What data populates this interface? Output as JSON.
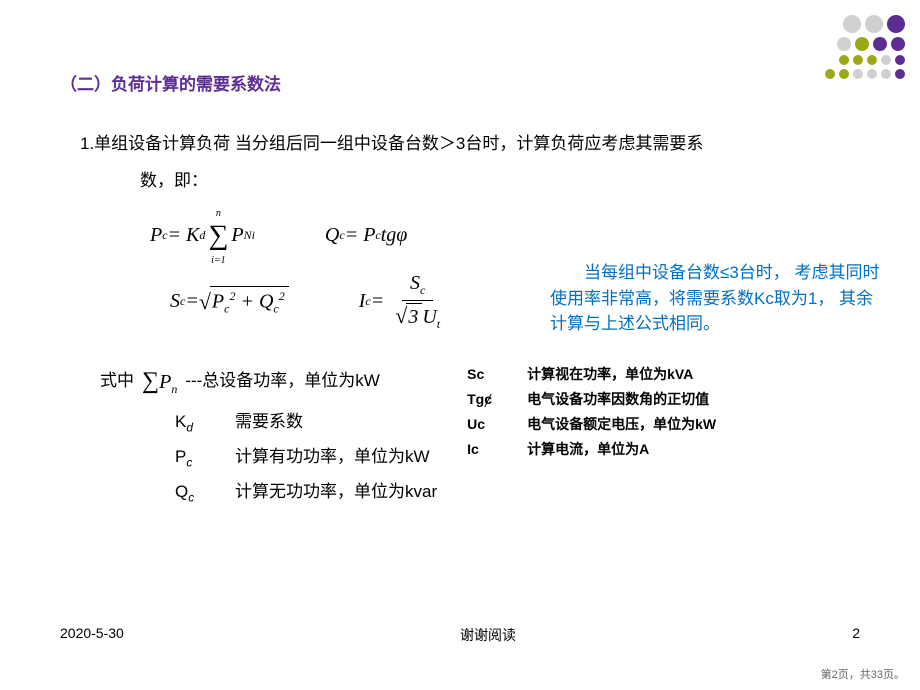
{
  "colors": {
    "title": "#5c2e91",
    "accent": "#0070c0",
    "text": "#000000",
    "dot_purple": "#5c2e91",
    "dot_olive": "#9ca817",
    "dot_gray": "#d0d0d0"
  },
  "section_title": "（二）负荷计算的需要系数法",
  "body_line": "1.单组设备计算负荷  当分组后同一组中设备台数＞3台时，计算负荷应考虑其需要系",
  "body_line2": "数，即：",
  "formulas": {
    "pc": {
      "lhs": "P",
      "lhs_sub": "c",
      "eq": " = K",
      "kd_sub": "d",
      "sum_top": "n",
      "sum_bot": "i=1",
      "rhs": "P",
      "rhs_sub": "Ni"
    },
    "qc": {
      "lhs": "Q",
      "lhs_sub": "c",
      "eq": " = P",
      "pc_sub": "c",
      "rhs": "tgφ"
    },
    "sc": {
      "lhs": "S",
      "lhs_sub": "c",
      "eq": " = ",
      "p": "P",
      "p_sub": "c",
      "p_sup": "2",
      "plus": " + ",
      "q": "Q",
      "q_sub": "c",
      "q_sup": "2"
    },
    "ic": {
      "lhs": "I",
      "lhs_sub": "c",
      "eq": " = ",
      "top": "S",
      "top_sub": "c",
      "bot_sqrt": "3",
      "bot": "U",
      "bot_sub": "t"
    }
  },
  "side_note": "　　当每组中设备台数≤3台时， 考虑其同时使用率非常高，将需要系数Kc取为1， 其余计算与上述公式相同。",
  "def_intro": "式中",
  "def_sum_sym": "∑",
  "def_sum_p": "P",
  "def_sum_sub": "n",
  "def_sum_text": "---总设备功率，单位为kW",
  "defs_left": [
    {
      "sym": "Kd",
      "text": "需要系数"
    },
    {
      "sym": "Pc",
      "text": "计算有功功率，单位为kW"
    },
    {
      "sym": "Qc",
      "text": "计算无功功率，单位为kvar"
    }
  ],
  "defs_right": [
    {
      "sym": "Sc",
      "text": "计算视在功率，单位为kVA"
    },
    {
      "sym": "Tgȼ",
      "text": "电气设备功率因数角的正切值"
    },
    {
      "sym": "Uc",
      "text": "电气设备额定电压，单位为kW"
    },
    {
      "sym": "Ic",
      "text": "计算电流，单位为A"
    }
  ],
  "footer": {
    "date": "2020-5-30",
    "center": "谢谢阅读",
    "page_num": "2"
  },
  "page_info": "第2页，共33页。",
  "dots": [
    {
      "row": [
        {
          "size": "lg",
          "c": "dot_gray"
        },
        {
          "size": "lg",
          "c": "dot_gray"
        },
        {
          "size": "lg",
          "c": "dot_purple"
        }
      ]
    },
    {
      "row": [
        {
          "size": "md",
          "c": "dot_gray"
        },
        {
          "size": "md",
          "c": "dot_olive"
        },
        {
          "size": "md",
          "c": "dot_purple"
        },
        {
          "size": "md",
          "c": "dot_purple"
        }
      ]
    },
    {
      "row": [
        {
          "size": "sm",
          "c": "dot_olive"
        },
        {
          "size": "sm",
          "c": "dot_olive"
        },
        {
          "size": "sm",
          "c": "dot_olive"
        },
        {
          "size": "sm",
          "c": "dot_gray"
        },
        {
          "size": "sm",
          "c": "dot_purple"
        }
      ]
    },
    {
      "row": [
        {
          "size": "sm",
          "c": "dot_olive"
        },
        {
          "size": "sm",
          "c": "dot_olive"
        },
        {
          "size": "sm",
          "c": "dot_gray"
        },
        {
          "size": "sm",
          "c": "dot_gray"
        },
        {
          "size": "sm",
          "c": "dot_gray"
        },
        {
          "size": "sm",
          "c": "dot_purple"
        }
      ]
    }
  ]
}
